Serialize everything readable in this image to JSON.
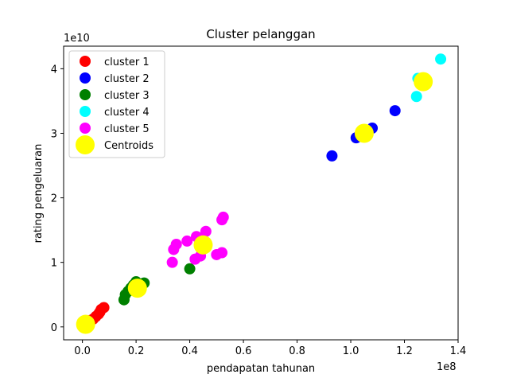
{
  "chart_data": {
    "type": "scatter",
    "title": "Cluster pelanggan",
    "xlabel": "pendapatan tahunan",
    "ylabel": "rating pengeluaran",
    "x_multiplier_label": "1e8",
    "y_multiplier_label": "1e10",
    "xlim": [
      -0.07,
      1.4
    ],
    "ylim": [
      -0.2,
      4.35
    ],
    "x_ticks": [
      0.0,
      0.2,
      0.4,
      0.6,
      0.8,
      1.0,
      1.2,
      1.4
    ],
    "x_tick_labels": [
      "0.0",
      "0.2",
      "0.4",
      "0.6",
      "0.8",
      "1.0",
      "1.2",
      "1.4"
    ],
    "y_ticks": [
      0,
      1,
      2,
      3,
      4
    ],
    "y_tick_labels": [
      "0",
      "1",
      "2",
      "3",
      "4"
    ],
    "legend_position": "top-left",
    "series": [
      {
        "name": "cluster 1",
        "color": "#ff0000",
        "points": [
          [
            0.01,
            0.05
          ],
          [
            0.02,
            0.08
          ],
          [
            0.03,
            0.1
          ],
          [
            0.04,
            0.12
          ],
          [
            0.05,
            0.16
          ],
          [
            0.06,
            0.2
          ],
          [
            0.065,
            0.23
          ],
          [
            0.07,
            0.27
          ],
          [
            0.08,
            0.3
          ]
        ]
      },
      {
        "name": "cluster 2",
        "color": "#0000ff",
        "points": [
          [
            0.93,
            2.65
          ],
          [
            1.02,
            2.93
          ],
          [
            1.08,
            3.08
          ],
          [
            1.165,
            3.35
          ]
        ]
      },
      {
        "name": "cluster 3",
        "color": "#008000",
        "points": [
          [
            0.155,
            0.42
          ],
          [
            0.16,
            0.5
          ],
          [
            0.17,
            0.55
          ],
          [
            0.18,
            0.6
          ],
          [
            0.19,
            0.65
          ],
          [
            0.2,
            0.7
          ],
          [
            0.22,
            0.65
          ],
          [
            0.23,
            0.68
          ],
          [
            0.4,
            0.9
          ]
        ]
      },
      {
        "name": "cluster 4",
        "color": "#00ffff",
        "points": [
          [
            1.245,
            3.57
          ],
          [
            1.25,
            3.85
          ],
          [
            1.26,
            3.78
          ],
          [
            1.335,
            4.15
          ]
        ]
      },
      {
        "name": "cluster 5",
        "color": "#ff00ff",
        "points": [
          [
            0.335,
            1.0
          ],
          [
            0.34,
            1.2
          ],
          [
            0.35,
            1.28
          ],
          [
            0.39,
            1.33
          ],
          [
            0.42,
            1.05
          ],
          [
            0.425,
            1.4
          ],
          [
            0.44,
            1.1
          ],
          [
            0.46,
            1.48
          ],
          [
            0.5,
            1.12
          ],
          [
            0.52,
            1.15
          ],
          [
            0.52,
            1.66
          ],
          [
            0.525,
            1.7
          ]
        ]
      }
    ],
    "centroids": {
      "name": "Centroids",
      "color": "#ffff00",
      "points": [
        [
          0.012,
          0.04
        ],
        [
          0.205,
          0.6
        ],
        [
          0.45,
          1.27
        ],
        [
          1.05,
          3.0
        ],
        [
          1.27,
          3.8
        ]
      ]
    }
  }
}
